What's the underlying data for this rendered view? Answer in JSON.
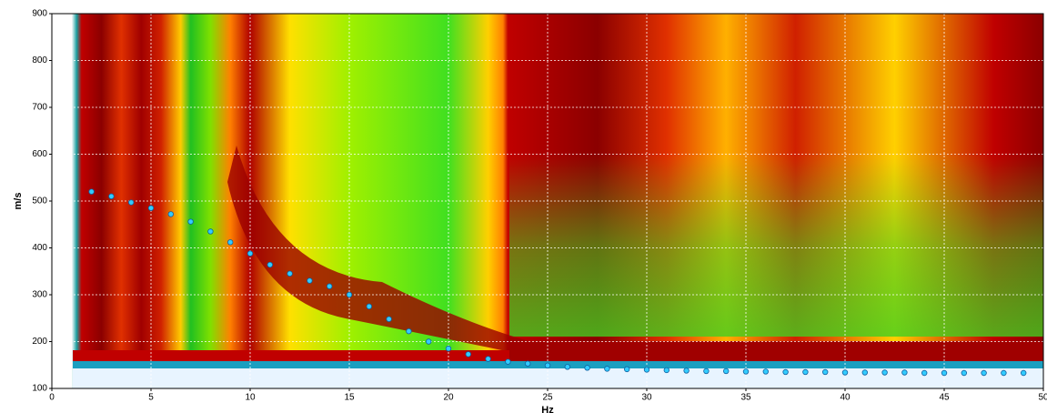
{
  "chart_data": {
    "type": "scatter",
    "xlabel": "Hz",
    "ylabel": "m/s",
    "x": [
      2,
      3,
      4,
      5,
      6,
      7,
      8,
      9,
      10,
      11,
      12,
      13,
      14,
      15,
      16,
      17,
      18,
      19,
      20,
      21,
      22,
      23,
      24,
      25,
      26,
      27,
      28,
      29,
      30,
      31,
      32,
      33,
      34,
      35,
      36,
      37,
      38,
      39,
      40,
      41,
      42,
      43,
      44,
      45,
      46,
      47,
      48,
      49
    ],
    "values": [
      520,
      510,
      497,
      485,
      472,
      456,
      435,
      412,
      388,
      364,
      345,
      330,
      318,
      300,
      275,
      248,
      222,
      200,
      185,
      173,
      163,
      157,
      153,
      149,
      146,
      144,
      142,
      141,
      140,
      139,
      138,
      137,
      137,
      136,
      136,
      135,
      135,
      135,
      134,
      134,
      134,
      134,
      133,
      133,
      133,
      133,
      133,
      133
    ],
    "color": "#33ccff",
    "xlim": [
      0,
      50
    ],
    "xticks": [
      0,
      5,
      10,
      15,
      20,
      25,
      30,
      35,
      40,
      45,
      50
    ],
    "ylim": [
      100,
      900
    ],
    "yticks": [
      100,
      200,
      300,
      400,
      500,
      600,
      700,
      800,
      900
    ],
    "grid": true
  }
}
